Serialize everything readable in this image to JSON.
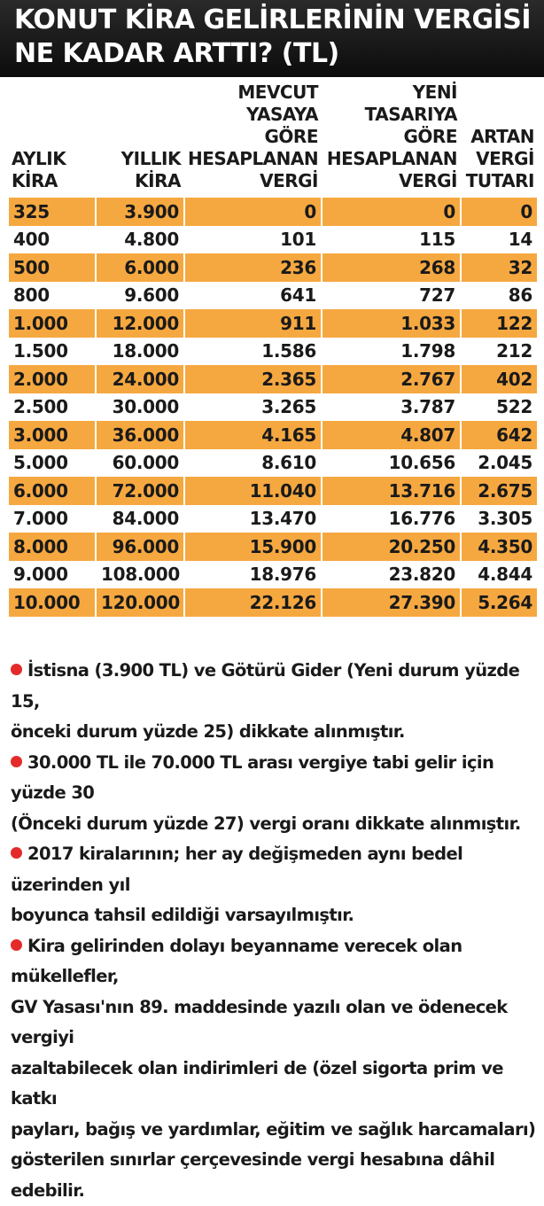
{
  "title": {
    "line1": "KONUT KİRA GELİRLERİNİN VERGİSİ",
    "line2": "NE KADAR ARTTI? (TL)"
  },
  "colors": {
    "header_bg": "#111111",
    "highlight_row": "#f6a840",
    "bullet": "#e42a2a"
  },
  "chart_data": {
    "type": "table",
    "columns": [
      [
        "AYLIK",
        "KİRA"
      ],
      [
        "YILLIK",
        "KİRA"
      ],
      [
        "MEVCUT",
        "YASAYA",
        "GÖRE",
        "HESAPLANAN",
        "VERGİ"
      ],
      [
        "YENİ",
        "TASARIYA",
        "GÖRE",
        "HESAPLANAN",
        "VERGİ"
      ],
      [
        "ARTAN",
        "VERGİ",
        "TUTARI"
      ]
    ],
    "rows": [
      [
        "325",
        "3.900",
        "0",
        "0",
        "0"
      ],
      [
        "400",
        "4.800",
        "101",
        "115",
        "14"
      ],
      [
        "500",
        "6.000",
        "236",
        "268",
        "32"
      ],
      [
        "800",
        "9.600",
        "641",
        "727",
        "86"
      ],
      [
        "1.000",
        "12.000",
        "911",
        "1.033",
        "122"
      ],
      [
        "1.500",
        "18.000",
        "1.586",
        "1.798",
        "212"
      ],
      [
        "2.000",
        "24.000",
        "2.365",
        "2.767",
        "402"
      ],
      [
        "2.500",
        "30.000",
        "3.265",
        "3.787",
        "522"
      ],
      [
        "3.000",
        "36.000",
        "4.165",
        "4.807",
        "642"
      ],
      [
        "5.000",
        "60.000",
        "8.610",
        "10.656",
        "2.045"
      ],
      [
        "6.000",
        "72.000",
        "11.040",
        "13.716",
        "2.675"
      ],
      [
        "7.000",
        "84.000",
        "13.470",
        "16.776",
        "3.305"
      ],
      [
        "8.000",
        "96.000",
        "15.900",
        "20.250",
        "4.350"
      ],
      [
        "9.000",
        "108.000",
        "18.976",
        "23.820",
        "4.844"
      ],
      [
        "10.000",
        "120.000",
        "22.126",
        "27.390",
        "5.264"
      ]
    ]
  },
  "notes": [
    [
      "İstisna (3.900 TL)  ve Götürü Gider (Yeni durum yüzde 15,",
      "önceki durum yüzde 25) dikkate alınmıştır."
    ],
    [
      "30.000 TL ile 70.000 TL arası vergiye tabi gelir için yüzde 30",
      "(Önceki durum yüzde 27) vergi oranı dikkate alınmıştır."
    ],
    [
      "2017 kiralarının; her ay değişmeden aynı bedel üzerinden yıl",
      "boyunca tahsil edildiği varsayılmıştır."
    ],
    [
      "Kira gelirinden dolayı beyanname verecek olan mükellefler,",
      "GV Yasası'nın 89. maddesinde yazılı olan ve ödenecek vergiyi",
      "azaltabilecek olan indirimleri de (özel sigorta prim ve katkı",
      "payları, bağış ve yardımlar,  eğitim ve sağlık harcamaları)",
      "gösterilen sınırlar çerçevesinde vergi hesabına dâhil edebilir."
    ]
  ]
}
